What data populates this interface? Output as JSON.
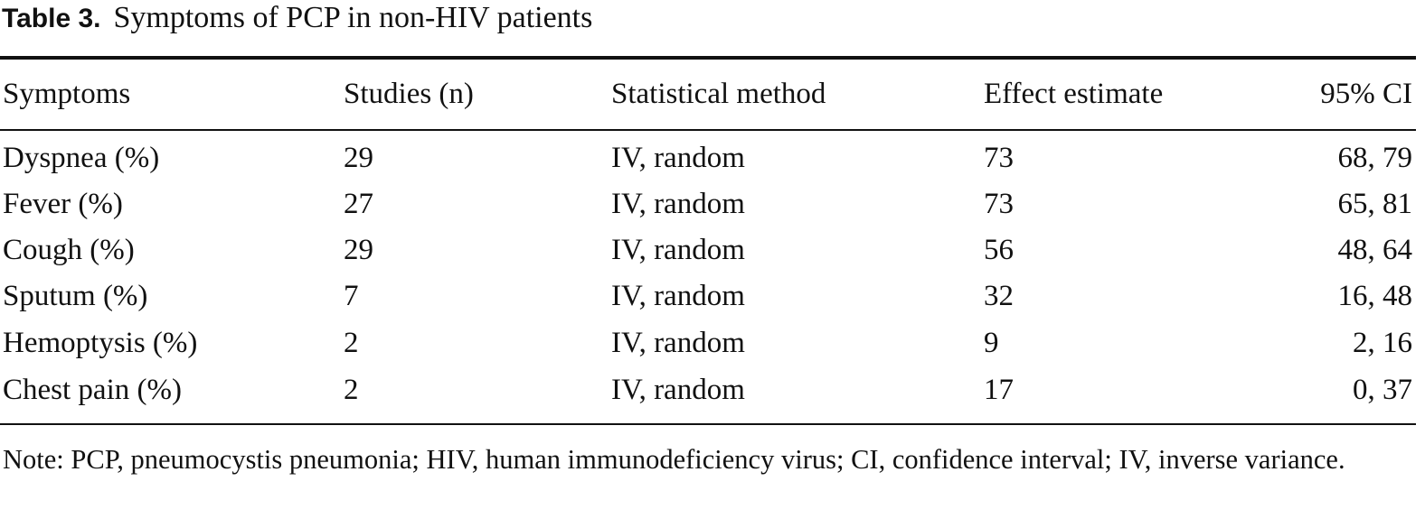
{
  "caption": {
    "label": "Table 3.",
    "title": "Symptoms of PCP in non-HIV patients"
  },
  "table": {
    "columns": [
      "Symptoms",
      "Studies (n)",
      "Statistical method",
      "Effect estimate",
      "95% CI"
    ],
    "rows": [
      [
        "Dyspnea (%)",
        "29",
        "IV, random",
        "73",
        "68, 79"
      ],
      [
        "Fever (%)",
        "27",
        "IV, random",
        "73",
        "65, 81"
      ],
      [
        "Cough (%)",
        "29",
        "IV, random",
        "56",
        "48, 64"
      ],
      [
        "Sputum (%)",
        "7",
        "IV, random",
        "32",
        "16, 48"
      ],
      [
        "Hemoptysis (%)",
        "2",
        "IV, random",
        "9",
        "2, 16"
      ],
      [
        "Chest pain (%)",
        "2",
        "IV, random",
        "17",
        "0, 37"
      ]
    ]
  },
  "note": "Note: PCP, pneumocystis pneumonia; HIV, human immunodeficiency virus; CI, confidence interval; IV, inverse variance."
}
